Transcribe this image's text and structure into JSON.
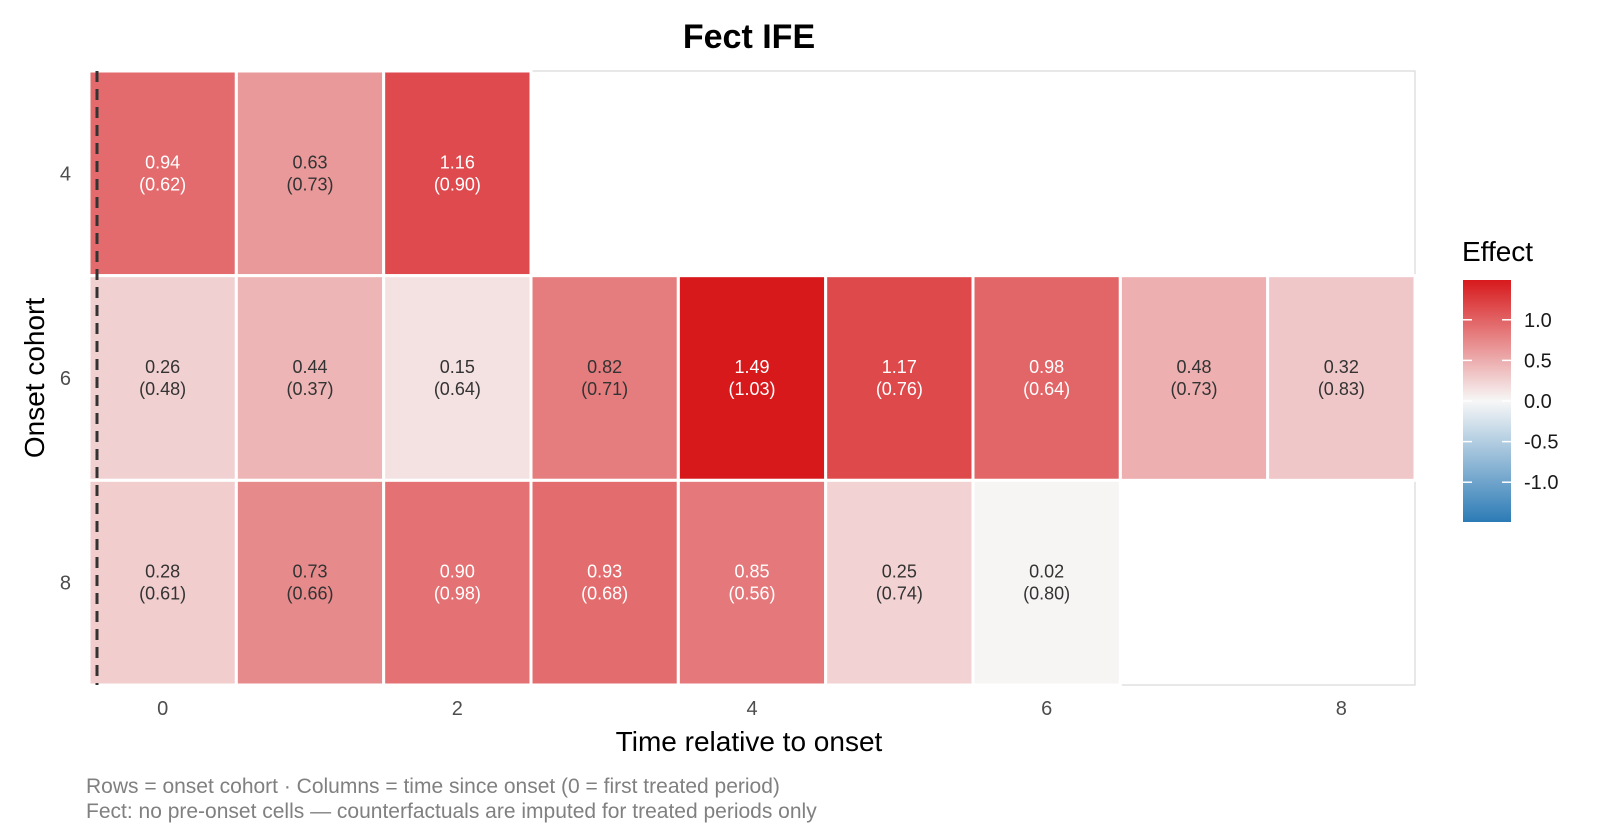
{
  "chart_data": {
    "type": "heatmap",
    "title": "Fect IFE",
    "xlabel": "Time relative to onset",
    "ylabel": "Onset cohort",
    "x_ticks": [
      "0",
      "2",
      "4",
      "6",
      "8"
    ],
    "y_categories": [
      "4",
      "6",
      "8"
    ],
    "x_range": [
      0,
      8
    ],
    "legend_title": "Effect",
    "legend_ticks": [
      "1.0",
      "0.5",
      "0.0",
      "-0.5",
      "-1.0"
    ],
    "legend_values": [
      1.0,
      0.5,
      0.0,
      -0.5,
      -1.0
    ],
    "color_limits": [
      -1.49,
      1.49
    ],
    "colors": {
      "low": "#2c7bb6",
      "mid": "#f7f7f7",
      "high": "#d7191c"
    },
    "reference_line": {
      "x": -0.5,
      "style": "dashed"
    },
    "cells": [
      {
        "cohort": "4",
        "t": 0,
        "value": 0.94,
        "value_label": "0.94",
        "se_label": "(0.62)"
      },
      {
        "cohort": "4",
        "t": 1,
        "value": 0.63,
        "value_label": "0.63",
        "se_label": "(0.73)"
      },
      {
        "cohort": "4",
        "t": 2,
        "value": 1.16,
        "value_label": "1.16",
        "se_label": "(0.90)"
      },
      {
        "cohort": "6",
        "t": 0,
        "value": 0.26,
        "value_label": "0.26",
        "se_label": "(0.48)"
      },
      {
        "cohort": "6",
        "t": 1,
        "value": 0.44,
        "value_label": "0.44",
        "se_label": "(0.37)"
      },
      {
        "cohort": "6",
        "t": 2,
        "value": 0.15,
        "value_label": "0.15",
        "se_label": "(0.64)"
      },
      {
        "cohort": "6",
        "t": 3,
        "value": 0.82,
        "value_label": "0.82",
        "se_label": "(0.71)"
      },
      {
        "cohort": "6",
        "t": 4,
        "value": 1.49,
        "value_label": "1.49",
        "se_label": "(1.03)"
      },
      {
        "cohort": "6",
        "t": 5,
        "value": 1.17,
        "value_label": "1.17",
        "se_label": "(0.76)"
      },
      {
        "cohort": "6",
        "t": 6,
        "value": 0.98,
        "value_label": "0.98",
        "se_label": "(0.64)"
      },
      {
        "cohort": "6",
        "t": 7,
        "value": 0.48,
        "value_label": "0.48",
        "se_label": "(0.73)"
      },
      {
        "cohort": "6",
        "t": 8,
        "value": 0.32,
        "value_label": "0.32",
        "se_label": "(0.83)"
      },
      {
        "cohort": "8",
        "t": 0,
        "value": 0.28,
        "value_label": "0.28",
        "se_label": "(0.61)"
      },
      {
        "cohort": "8",
        "t": 1,
        "value": 0.73,
        "value_label": "0.73",
        "se_label": "(0.66)"
      },
      {
        "cohort": "8",
        "t": 2,
        "value": 0.9,
        "value_label": "0.90",
        "se_label": "(0.98)"
      },
      {
        "cohort": "8",
        "t": 3,
        "value": 0.93,
        "value_label": "0.93",
        "se_label": "(0.68)"
      },
      {
        "cohort": "8",
        "t": 4,
        "value": 0.85,
        "value_label": "0.85",
        "se_label": "(0.56)"
      },
      {
        "cohort": "8",
        "t": 5,
        "value": 0.25,
        "value_label": "0.25",
        "se_label": "(0.74)"
      },
      {
        "cohort": "8",
        "t": 6,
        "value": 0.02,
        "value_label": "0.02",
        "se_label": "(0.80)"
      }
    ],
    "caption_lines": [
      "Rows = onset cohort · Columns = time since onset (0 = first treated period)",
      "Fect: no pre-onset cells — counterfactuals are imputed for treated periods only"
    ]
  }
}
